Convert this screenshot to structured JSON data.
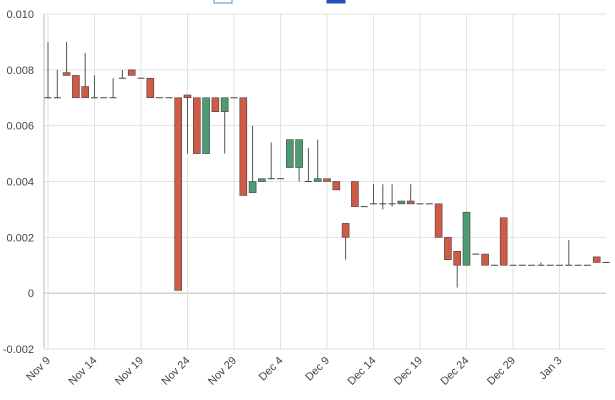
{
  "chart_data": {
    "type": "candlestick",
    "title": "",
    "xlabel": "",
    "ylabel": "",
    "ylim": [
      -0.002,
      0.01
    ],
    "y_ticks": [
      "-0.002",
      "0",
      "0.002",
      "0.004",
      "0.006",
      "0.008",
      "0.010"
    ],
    "x_ticks": [
      "Nov 9",
      "Nov 14",
      "Nov 19",
      "Nov 24",
      "Nov 29",
      "Dec 4",
      "Dec 9",
      "Dec 14",
      "Dec 19",
      "Dec 24",
      "Dec 29",
      "Jan 3"
    ],
    "grid": true,
    "legend": {
      "placement": "top-center",
      "entries_visible": 2
    },
    "colors": {
      "up": "#4e9a72",
      "down": "#cf5a46",
      "wick": "#555555",
      "grid": "#e2e2e2",
      "axis": "#bbbbbb",
      "legend_a": "#5b8fd6",
      "legend_b": "#1f4fbf"
    },
    "candles": [
      {
        "date": "Nov 9",
        "open": 0.007,
        "high": 0.009,
        "low": 0.007,
        "close": 0.007
      },
      {
        "date": "Nov 10",
        "open": 0.007,
        "high": 0.008,
        "low": 0.007,
        "close": 0.007
      },
      {
        "date": "Nov 11",
        "open": 0.0079,
        "high": 0.009,
        "low": 0.0078,
        "close": 0.0078
      },
      {
        "date": "Nov 12",
        "open": 0.0078,
        "high": 0.0078,
        "low": 0.007,
        "close": 0.007
      },
      {
        "date": "Nov 13",
        "open": 0.0074,
        "high": 0.0086,
        "low": 0.007,
        "close": 0.007
      },
      {
        "date": "Nov 14",
        "open": 0.007,
        "high": 0.0078,
        "low": 0.007,
        "close": 0.007
      },
      {
        "date": "Nov 15",
        "open": 0.007,
        "high": 0.007,
        "low": 0.007,
        "close": 0.007
      },
      {
        "date": "Nov 16",
        "open": 0.007,
        "high": 0.0077,
        "low": 0.007,
        "close": 0.007
      },
      {
        "date": "Nov 17",
        "open": 0.0077,
        "high": 0.008,
        "low": 0.0077,
        "close": 0.0077
      },
      {
        "date": "Nov 18",
        "open": 0.008,
        "high": 0.008,
        "low": 0.0078,
        "close": 0.0078
      },
      {
        "date": "Nov 19",
        "open": 0.0077,
        "high": 0.0077,
        "low": 0.0077,
        "close": 0.0077
      },
      {
        "date": "Nov 20",
        "open": 0.0077,
        "high": 0.0077,
        "low": 0.007,
        "close": 0.007
      },
      {
        "date": "Nov 21",
        "open": 0.007,
        "high": 0.007,
        "low": 0.007,
        "close": 0.007
      },
      {
        "date": "Nov 22",
        "open": 0.007,
        "high": 0.007,
        "low": 0.007,
        "close": 0.007
      },
      {
        "date": "Nov 23",
        "open": 0.007,
        "high": 0.007,
        "low": 0.0001,
        "close": 0.0001
      },
      {
        "date": "Nov 24",
        "open": 0.0071,
        "high": 0.0071,
        "low": 0.005,
        "close": 0.007
      },
      {
        "date": "Nov 25",
        "open": 0.007,
        "high": 0.007,
        "low": 0.005,
        "close": 0.005
      },
      {
        "date": "Nov 26",
        "open": 0.005,
        "high": 0.007,
        "low": 0.005,
        "close": 0.007
      },
      {
        "date": "Nov 27",
        "open": 0.007,
        "high": 0.007,
        "low": 0.0065,
        "close": 0.0065
      },
      {
        "date": "Nov 28",
        "open": 0.0065,
        "high": 0.007,
        "low": 0.005,
        "close": 0.007
      },
      {
        "date": "Nov 29",
        "open": 0.007,
        "high": 0.007,
        "low": 0.007,
        "close": 0.007
      },
      {
        "date": "Nov 30",
        "open": 0.007,
        "high": 0.007,
        "low": 0.0035,
        "close": 0.0035
      },
      {
        "date": "Dec 1",
        "open": 0.0036,
        "high": 0.006,
        "low": 0.0036,
        "close": 0.004
      },
      {
        "date": "Dec 2",
        "open": 0.004,
        "high": 0.0041,
        "low": 0.004,
        "close": 0.0041
      },
      {
        "date": "Dec 3",
        "open": 0.0041,
        "high": 0.0054,
        "low": 0.0041,
        "close": 0.0041
      },
      {
        "date": "Dec 4",
        "open": 0.0041,
        "high": 0.0041,
        "low": 0.0041,
        "close": 0.0041
      },
      {
        "date": "Dec 5",
        "open": 0.0045,
        "high": 0.0055,
        "low": 0.0045,
        "close": 0.0055
      },
      {
        "date": "Dec 6",
        "open": 0.0045,
        "high": 0.0055,
        "low": 0.004,
        "close": 0.0055
      },
      {
        "date": "Dec 7",
        "open": 0.004,
        "high": 0.0052,
        "low": 0.004,
        "close": 0.004
      },
      {
        "date": "Dec 8",
        "open": 0.004,
        "high": 0.0055,
        "low": 0.004,
        "close": 0.0041
      },
      {
        "date": "Dec 9",
        "open": 0.0041,
        "high": 0.0041,
        "low": 0.004,
        "close": 0.004
      },
      {
        "date": "Dec 10",
        "open": 0.004,
        "high": 0.004,
        "low": 0.0037,
        "close": 0.0037
      },
      {
        "date": "Dec 11",
        "open": 0.0025,
        "high": 0.0025,
        "low": 0.0012,
        "close": 0.002
      },
      {
        "date": "Dec 12",
        "open": 0.004,
        "high": 0.004,
        "low": 0.0031,
        "close": 0.0031
      },
      {
        "date": "Dec 13",
        "open": 0.0031,
        "high": 0.0031,
        "low": 0.0031,
        "close": 0.0031
      },
      {
        "date": "Dec 14",
        "open": 0.0032,
        "high": 0.0039,
        "low": 0.0032,
        "close": 0.0032
      },
      {
        "date": "Dec 15",
        "open": 0.0032,
        "high": 0.0039,
        "low": 0.003,
        "close": 0.0032
      },
      {
        "date": "Dec 16",
        "open": 0.0032,
        "high": 0.0039,
        "low": 0.0031,
        "close": 0.0032
      },
      {
        "date": "Dec 17",
        "open": 0.0032,
        "high": 0.0033,
        "low": 0.0032,
        "close": 0.0033
      },
      {
        "date": "Dec 18",
        "open": 0.0033,
        "high": 0.0039,
        "low": 0.0032,
        "close": 0.0032
      },
      {
        "date": "Dec 19",
        "open": 0.0032,
        "high": 0.0032,
        "low": 0.0032,
        "close": 0.0032
      },
      {
        "date": "Dec 20",
        "open": 0.0032,
        "high": 0.0032,
        "low": 0.0032,
        "close": 0.0032
      },
      {
        "date": "Dec 21",
        "open": 0.0032,
        "high": 0.0032,
        "low": 0.002,
        "close": 0.002
      },
      {
        "date": "Dec 22",
        "open": 0.002,
        "high": 0.002,
        "low": 0.0012,
        "close": 0.0012
      },
      {
        "date": "Dec 23",
        "open": 0.0015,
        "high": 0.0015,
        "low": 0.0002,
        "close": 0.001
      },
      {
        "date": "Dec 24",
        "open": 0.001,
        "high": 0.0029,
        "low": 0.001,
        "close": 0.0029
      },
      {
        "date": "Dec 25",
        "open": 0.0014,
        "high": 0.0014,
        "low": 0.0014,
        "close": 0.0014
      },
      {
        "date": "Dec 26",
        "open": 0.0014,
        "high": 0.0014,
        "low": 0.001,
        "close": 0.001
      },
      {
        "date": "Dec 27",
        "open": 0.001,
        "high": 0.001,
        "low": 0.001,
        "close": 0.001
      },
      {
        "date": "Dec 28",
        "open": 0.0027,
        "high": 0.0027,
        "low": 0.001,
        "close": 0.001
      },
      {
        "date": "Dec 29",
        "open": 0.001,
        "high": 0.001,
        "low": 0.001,
        "close": 0.001
      },
      {
        "date": "Dec 30",
        "open": 0.001,
        "high": 0.001,
        "low": 0.001,
        "close": 0.001
      },
      {
        "date": "Dec 31",
        "open": 0.001,
        "high": 0.001,
        "low": 0.001,
        "close": 0.001
      },
      {
        "date": "Jan 1",
        "open": 0.001,
        "high": 0.0011,
        "low": 0.001,
        "close": 0.001
      },
      {
        "date": "Jan 2",
        "open": 0.001,
        "high": 0.001,
        "low": 0.001,
        "close": 0.001
      },
      {
        "date": "Jan 3",
        "open": 0.001,
        "high": 0.001,
        "low": 0.001,
        "close": 0.001
      },
      {
        "date": "Jan 4",
        "open": 0.001,
        "high": 0.0019,
        "low": 0.001,
        "close": 0.001
      },
      {
        "date": "Jan 5",
        "open": 0.001,
        "high": 0.001,
        "low": 0.001,
        "close": 0.001
      },
      {
        "date": "Jan 6",
        "open": 0.001,
        "high": 0.001,
        "low": 0.001,
        "close": 0.001
      },
      {
        "date": "Jan 7",
        "open": 0.0013,
        "high": 0.0013,
        "low": 0.0011,
        "close": 0.0011
      },
      {
        "date": "Jan 8",
        "open": 0.0011,
        "high": 0.0011,
        "low": 0.0011,
        "close": 0.0011
      }
    ]
  }
}
